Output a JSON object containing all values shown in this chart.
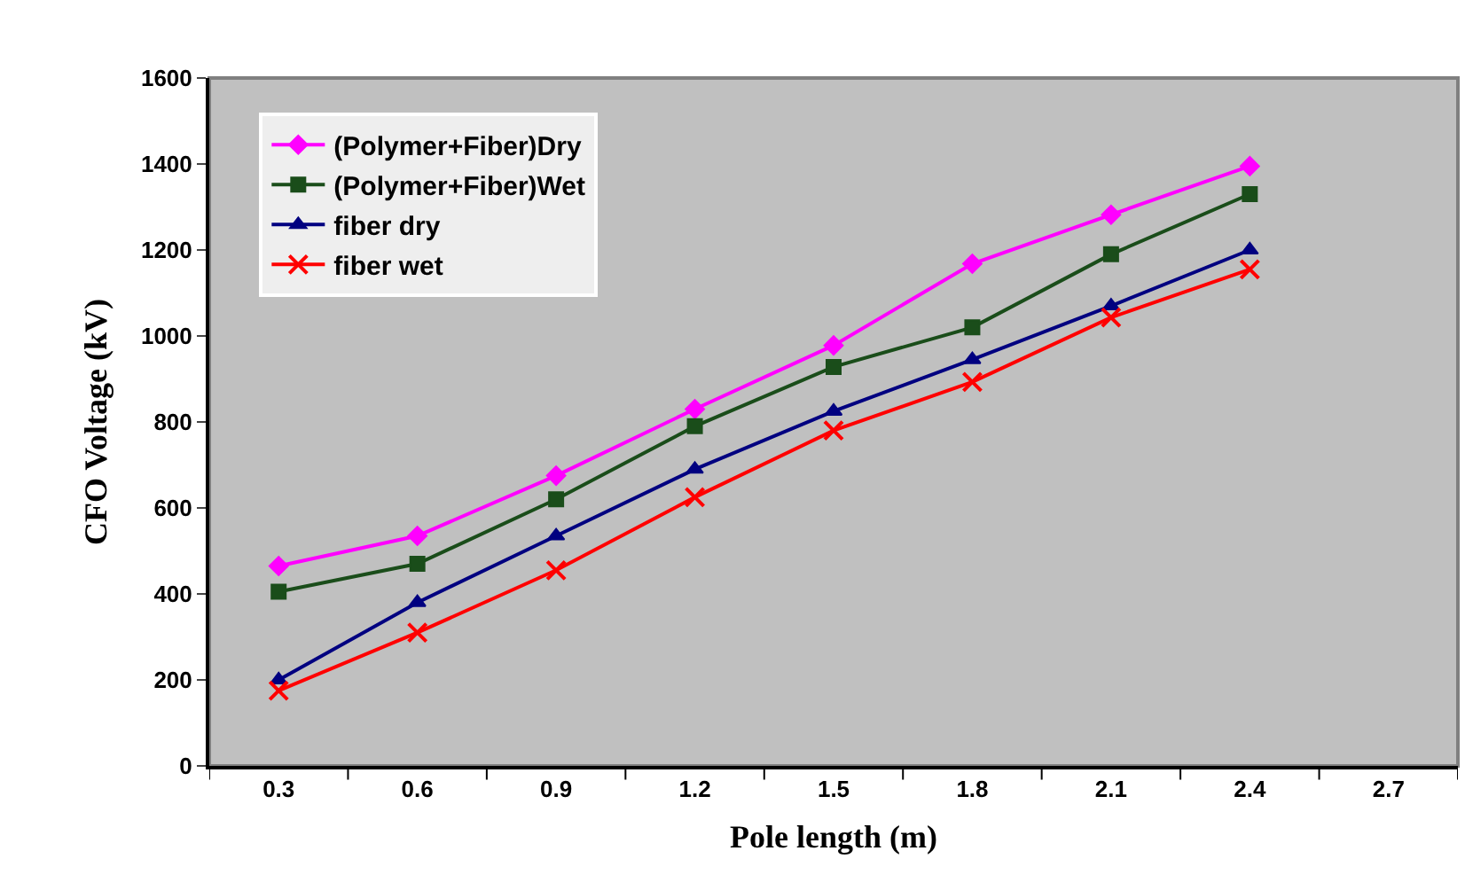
{
  "chart_data": {
    "type": "line",
    "xlabel": "Pole length (m)",
    "ylabel": "CFO Voltage (kV)",
    "categories": [
      "0.3",
      "0.6",
      "0.9",
      "1.2",
      "1.5",
      "1.8",
      "2.1",
      "2.4",
      "2.7"
    ],
    "series": [
      {
        "name": "(Polymer+Fiber)Dry",
        "color": "#ff00ff",
        "marker": "diamond",
        "values": [
          465,
          535,
          675,
          830,
          978,
          1168,
          1282,
          1395,
          null
        ]
      },
      {
        "name": "(Polymer+Fiber)Wet",
        "color": "#1a4d1a",
        "marker": "square",
        "values": [
          405,
          470,
          620,
          790,
          928,
          1020,
          1190,
          1330,
          null
        ]
      },
      {
        "name": "fiber dry",
        "color": "#000080",
        "marker": "triangle",
        "values": [
          200,
          380,
          535,
          690,
          825,
          945,
          1070,
          1200,
          null
        ]
      },
      {
        "name": "fiber wet",
        "color": "#ff0000",
        "marker": "cross",
        "values": [
          175,
          310,
          455,
          625,
          780,
          893,
          1043,
          1155,
          null
        ]
      }
    ],
    "ylim": [
      0,
      1600
    ],
    "yticks": [
      0,
      200,
      400,
      600,
      800,
      1000,
      1200,
      1400,
      1600
    ],
    "grid": false,
    "legend": "top left"
  }
}
